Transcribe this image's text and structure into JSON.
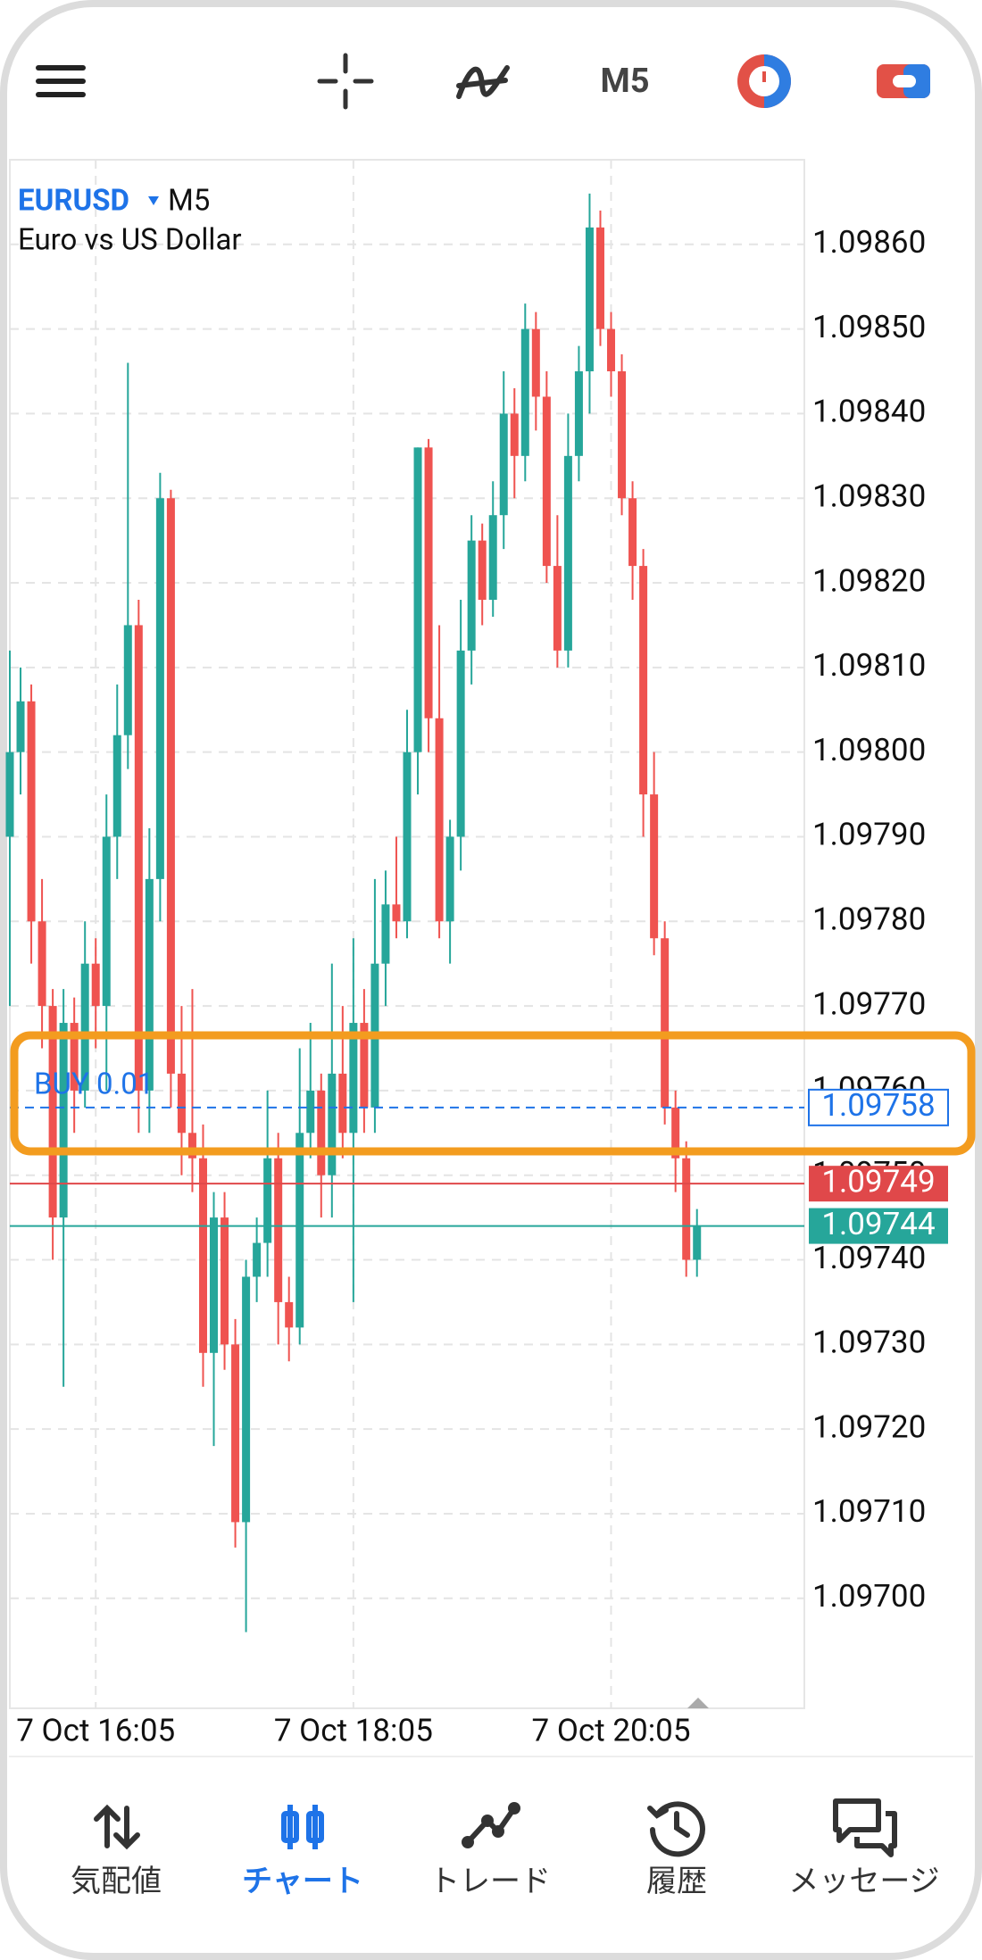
{
  "header": {
    "timeframe": "M5"
  },
  "chart_data": {
    "type": "candlestick",
    "symbol": "EURUSD",
    "timeframe": "M5",
    "description": "Euro vs US Dollar",
    "up_color": "#26a69a",
    "down_color": "#ef5350",
    "grid": true,
    "xlim": [
      0,
      74
    ],
    "ylim": [
      1.09687,
      1.0987
    ],
    "xticks": [
      {
        "value": 8,
        "label": "7 Oct 16:05"
      },
      {
        "value": 32,
        "label": "7 Oct 18:05"
      },
      {
        "value": 56,
        "label": "7 Oct 20:05"
      }
    ],
    "yticks": [
      {
        "value": 1.097,
        "label": "1.09700"
      },
      {
        "value": 1.0971,
        "label": "1.09710"
      },
      {
        "value": 1.0972,
        "label": "1.09720"
      },
      {
        "value": 1.0973,
        "label": "1.09730"
      },
      {
        "value": 1.0974,
        "label": "1.09740"
      },
      {
        "value": 1.0975,
        "label": "1.09750"
      },
      {
        "value": 1.0976,
        "label": "1.09760"
      },
      {
        "value": 1.0977,
        "label": "1.09770"
      },
      {
        "value": 1.0978,
        "label": "1.09780"
      },
      {
        "value": 1.0979,
        "label": "1.09790"
      },
      {
        "value": 1.098,
        "label": "1.09800"
      },
      {
        "value": 1.0981,
        "label": "1.09810"
      },
      {
        "value": 1.0982,
        "label": "1.09820"
      },
      {
        "value": 1.0983,
        "label": "1.09830"
      },
      {
        "value": 1.0984,
        "label": "1.09840"
      },
      {
        "value": 1.0985,
        "label": "1.09850"
      },
      {
        "value": 1.0986,
        "label": "1.09860"
      }
    ],
    "open": [
      1.0979,
      1.098,
      1.09806,
      1.0978,
      1.0977,
      1.09745,
      1.09768,
      1.0976,
      1.09775,
      1.0977,
      1.0979,
      1.09802,
      1.09815,
      1.0976,
      1.09785,
      1.0983,
      1.09762,
      1.09755,
      1.09752,
      1.09729,
      1.09745,
      1.0973,
      1.09709,
      1.09738,
      1.09742,
      1.09752,
      1.09735,
      1.09732,
      1.09755,
      1.0976,
      1.0975,
      1.09762,
      1.09755,
      1.09768,
      1.09758,
      1.09775,
      1.09782,
      1.0978,
      1.098,
      1.09836,
      1.09804,
      1.0978,
      1.0979,
      1.09812,
      1.09825,
      1.09818,
      1.09828,
      1.0984,
      1.09835,
      1.0985,
      1.09842,
      1.09822,
      1.09812,
      1.09835,
      1.09845,
      1.09862,
      1.0985,
      1.09845,
      1.0983,
      1.09822,
      1.09795,
      1.09778,
      1.09758,
      1.09752,
      1.0974
    ],
    "high": [
      1.09812,
      1.0981,
      1.09808,
      1.09785,
      1.09772,
      1.09772,
      1.09771,
      1.0978,
      1.09778,
      1.09795,
      1.09808,
      1.09846,
      1.09818,
      1.09791,
      1.09833,
      1.09831,
      1.0977,
      1.09772,
      1.09756,
      1.09748,
      1.09748,
      1.09733,
      1.0974,
      1.09745,
      1.0976,
      1.09755,
      1.09738,
      1.09765,
      1.09768,
      1.09762,
      1.09775,
      1.0977,
      1.09778,
      1.09772,
      1.09785,
      1.09786,
      1.0979,
      1.09805,
      1.09836,
      1.09837,
      1.09815,
      1.09792,
      1.09818,
      1.09828,
      1.09827,
      1.09832,
      1.09845,
      1.09843,
      1.09853,
      1.09852,
      1.09845,
      1.09828,
      1.0984,
      1.09848,
      1.09866,
      1.09864,
      1.09852,
      1.09847,
      1.09832,
      1.09824,
      1.098,
      1.0978,
      1.0976,
      1.09754,
      1.09746
    ],
    "low": [
      1.0977,
      1.09795,
      1.09775,
      1.09765,
      1.0974,
      1.09725,
      1.09755,
      1.09758,
      1.09765,
      1.0976,
      1.09785,
      1.09798,
      1.09755,
      1.09755,
      1.0978,
      1.09758,
      1.0975,
      1.09748,
      1.09725,
      1.09718,
      1.09727,
      1.09706,
      1.09696,
      1.09735,
      1.09738,
      1.0973,
      1.09728,
      1.0973,
      1.09752,
      1.09745,
      1.09745,
      1.09752,
      1.09735,
      1.09755,
      1.09755,
      1.0977,
      1.09778,
      1.09778,
      1.09795,
      1.098,
      1.09778,
      1.09775,
      1.09786,
      1.09808,
      1.09815,
      1.09816,
      1.09824,
      1.0983,
      1.09832,
      1.09838,
      1.0982,
      1.0981,
      1.0981,
      1.09832,
      1.0984,
      1.09848,
      1.09842,
      1.09828,
      1.09818,
      1.0979,
      1.09776,
      1.09756,
      1.09748,
      1.09738,
      1.09738
    ],
    "close": [
      1.098,
      1.09806,
      1.0978,
      1.0977,
      1.09745,
      1.09768,
      1.0976,
      1.09775,
      1.0977,
      1.0979,
      1.09802,
      1.09815,
      1.0976,
      1.09785,
      1.0983,
      1.09762,
      1.09755,
      1.09752,
      1.09729,
      1.09745,
      1.0973,
      1.09709,
      1.09738,
      1.09742,
      1.09752,
      1.09735,
      1.09732,
      1.09755,
      1.0976,
      1.0975,
      1.09762,
      1.09755,
      1.09768,
      1.09758,
      1.09775,
      1.09782,
      1.0978,
      1.098,
      1.09836,
      1.09804,
      1.0978,
      1.0979,
      1.09812,
      1.09825,
      1.09818,
      1.09828,
      1.0984,
      1.09835,
      1.0985,
      1.09842,
      1.09822,
      1.09812,
      1.09835,
      1.09845,
      1.09862,
      1.0985,
      1.09845,
      1.0983,
      1.09822,
      1.09795,
      1.09778,
      1.09758,
      1.09752,
      1.0974,
      1.09744
    ],
    "order": {
      "label": "BUY 0.01",
      "color": "#1e73e8",
      "price": {
        "value": 1.09758,
        "label": "1.09758"
      }
    },
    "bid": {
      "color": "#e0484a",
      "price": {
        "value": 1.09749,
        "label": "1.09749"
      }
    },
    "ask": {
      "color": "#26a69a",
      "price": {
        "value": 1.09744,
        "label": "1.09744"
      }
    }
  },
  "nav": {
    "items": [
      "気配値",
      "チャート",
      "トレード",
      "履歴",
      "メッセージ"
    ],
    "active": 1
  }
}
